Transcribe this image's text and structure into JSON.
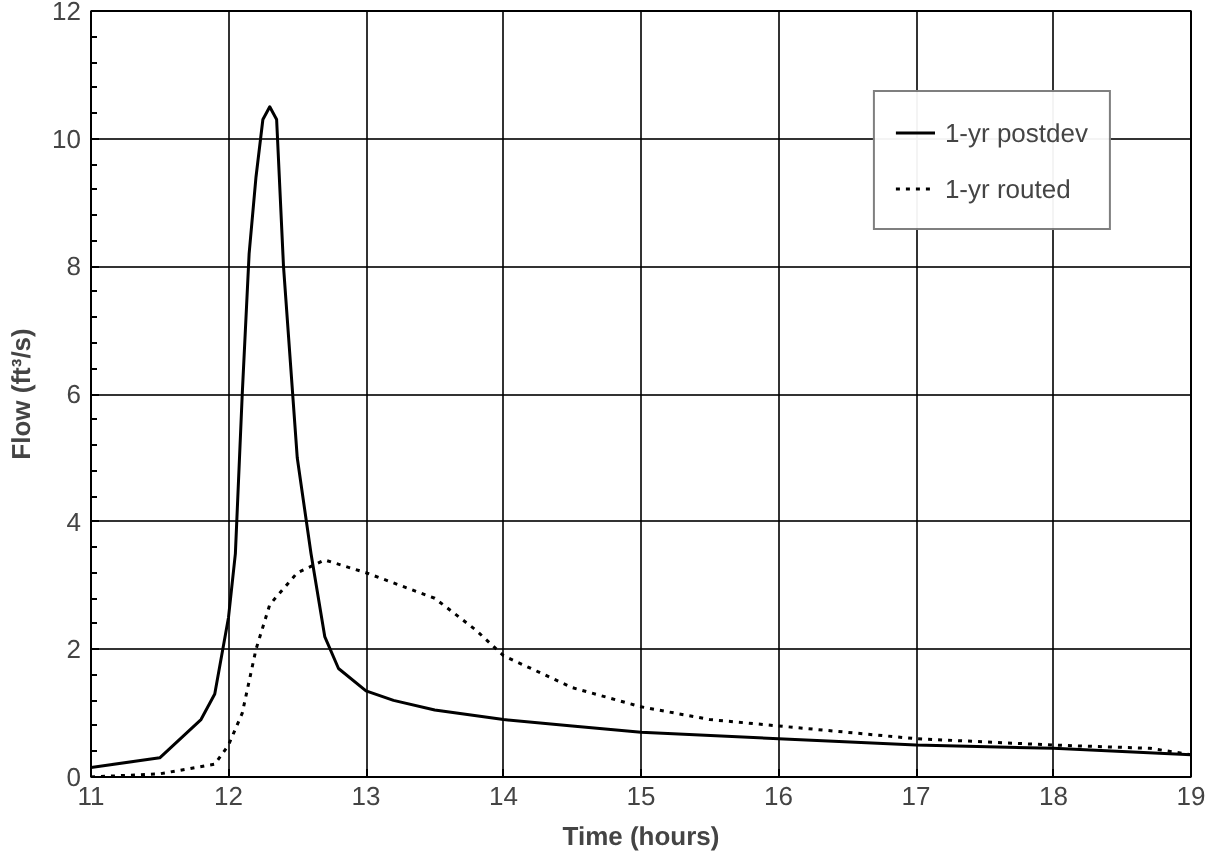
{
  "chart_data": {
    "type": "line",
    "xlabel": "Time (hours)",
    "ylabel": "Flow (ft³/s)",
    "xlim": [
      11,
      19
    ],
    "ylim": [
      0,
      12
    ],
    "xticks": [
      11,
      12,
      13,
      14,
      15,
      16,
      17,
      18,
      19
    ],
    "yticks": [
      0,
      2,
      4,
      6,
      8,
      10,
      12
    ],
    "grid": true,
    "legend": "top right",
    "series": [
      {
        "name": "1-yr postdev",
        "color": "#000000",
        "line_style": "solid",
        "x": [
          11,
          11.5,
          11.8,
          11.9,
          12.0,
          12.05,
          12.1,
          12.15,
          12.2,
          12.25,
          12.3,
          12.35,
          12.4,
          12.45,
          12.5,
          12.6,
          12.7,
          12.8,
          13,
          13.2,
          13.5,
          14,
          14.5,
          15,
          16,
          17,
          18,
          19
        ],
        "values": [
          0.15,
          0.3,
          0.9,
          1.3,
          2.5,
          3.5,
          6,
          8.2,
          9.4,
          10.3,
          10.5,
          10.3,
          8,
          6.5,
          5,
          3.5,
          2.2,
          1.7,
          1.35,
          1.2,
          1.05,
          0.9,
          0.8,
          0.7,
          0.6,
          0.5,
          0.45,
          0.35
        ]
      },
      {
        "name": "1-yr routed",
        "color": "#000000",
        "line_style": "dotted",
        "x": [
          11,
          11.5,
          11.9,
          12.0,
          12.1,
          12.2,
          12.3,
          12.5,
          12.7,
          13,
          13.5,
          13.8,
          14.0,
          14.5,
          15,
          15.5,
          16,
          17,
          18,
          18.7,
          19
        ],
        "values": [
          0,
          0.05,
          0.2,
          0.5,
          1.0,
          2.0,
          2.7,
          3.2,
          3.4,
          3.2,
          2.8,
          2.3,
          1.9,
          1.4,
          1.1,
          0.9,
          0.8,
          0.6,
          0.5,
          0.45,
          0.35
        ]
      }
    ]
  }
}
